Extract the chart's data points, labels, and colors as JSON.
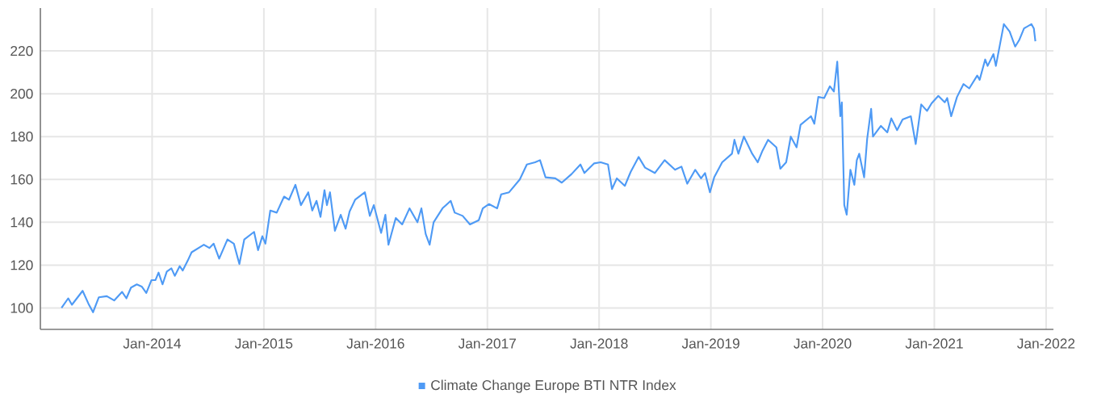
{
  "chart_data": {
    "type": "line",
    "x": [
      "2013-03-11",
      "2013-04-02",
      "2013-04-14",
      "2013-05-19",
      "2013-06-07",
      "2013-06-22",
      "2013-07-11",
      "2013-08-06",
      "2013-08-30",
      "2013-09-25",
      "2013-10-09",
      "2013-10-24",
      "2013-11-12",
      "2013-11-28",
      "2013-12-13",
      "2013-12-30",
      "2014-01-12",
      "2014-01-22",
      "2014-02-04",
      "2014-02-18",
      "2014-03-05",
      "2014-03-16",
      "2014-04-01",
      "2014-04-11",
      "2014-04-27",
      "2014-05-10",
      "2014-06-19",
      "2014-07-07",
      "2014-07-21",
      "2014-08-08",
      "2014-09-04",
      "2014-09-25",
      "2014-10-13",
      "2014-10-29",
      "2014-11-30",
      "2014-12-13",
      "2014-12-27",
      "2015-01-06",
      "2015-01-22",
      "2015-02-12",
      "2015-03-08",
      "2015-03-24",
      "2015-04-14",
      "2015-05-02",
      "2015-05-26",
      "2015-06-08",
      "2015-06-22",
      "2015-07-05",
      "2015-07-18",
      "2015-07-26",
      "2015-08-05",
      "2015-08-21",
      "2015-09-09",
      "2015-09-25",
      "2015-10-08",
      "2015-10-26",
      "2015-11-27",
      "2015-12-13",
      "2015-12-26",
      "2016-01-19",
      "2016-02-02",
      "2016-02-12",
      "2016-03-07",
      "2016-03-28",
      "2016-04-21",
      "2016-05-17",
      "2016-05-30",
      "2016-06-13",
      "2016-06-26",
      "2016-07-09",
      "2016-08-07",
      "2016-09-03",
      "2016-09-16",
      "2016-10-12",
      "2016-11-05",
      "2016-12-04",
      "2016-12-17",
      "2017-01-06",
      "2017-02-02",
      "2017-02-15",
      "2017-03-13",
      "2017-04-17",
      "2017-05-10",
      "2017-06-06",
      "2017-06-22",
      "2017-07-10",
      "2017-08-11",
      "2017-09-01",
      "2017-10-03",
      "2017-11-01",
      "2017-11-14",
      "2017-12-16",
      "2018-01-06",
      "2018-01-30",
      "2018-02-12",
      "2018-02-28",
      "2018-03-26",
      "2018-04-14",
      "2018-05-10",
      "2018-05-31",
      "2018-07-02",
      "2018-08-03",
      "2018-09-06",
      "2018-09-27",
      "2018-10-16",
      "2018-11-11",
      "2018-11-30",
      "2018-12-13",
      "2018-12-29",
      "2019-01-12",
      "2019-02-07",
      "2019-03-11",
      "2019-03-19",
      "2019-04-01",
      "2019-04-19",
      "2019-05-16",
      "2019-06-03",
      "2019-06-19",
      "2019-07-07",
      "2019-08-03",
      "2019-08-16",
      "2019-09-04",
      "2019-09-19",
      "2019-10-08",
      "2019-10-21",
      "2019-11-24",
      "2019-12-05",
      "2019-12-18",
      "2020-01-06",
      "2020-01-25",
      "2020-02-07",
      "2020-02-18",
      "2020-02-28",
      "2020-03-04",
      "2020-03-12",
      "2020-03-20",
      "2020-04-01",
      "2020-04-14",
      "2020-04-22",
      "2020-04-30",
      "2020-05-16",
      "2020-05-26",
      "2020-06-08",
      "2020-06-14",
      "2020-07-10",
      "2020-07-31",
      "2020-08-13",
      "2020-09-01",
      "2020-09-19",
      "2020-10-16",
      "2020-11-01",
      "2020-11-19",
      "2020-12-08",
      "2020-12-23",
      "2021-01-14",
      "2021-02-04",
      "2021-02-12",
      "2021-02-25",
      "2021-03-16",
      "2021-04-06",
      "2021-04-25",
      "2021-05-21",
      "2021-05-29",
      "2021-06-16",
      "2021-06-24",
      "2021-07-13",
      "2021-07-21",
      "2021-08-16",
      "2021-09-04",
      "2021-09-22",
      "2021-10-05",
      "2021-10-21",
      "2021-11-14",
      "2021-11-22",
      "2021-11-27"
    ],
    "series": [
      {
        "name": "Climate Change Europe BTI NTR Index",
        "color": "#4e9af5",
        "values": [
          100,
          104.5,
          101.5,
          108,
          102,
          98,
          105,
          105.5,
          103.5,
          107.5,
          104.5,
          109.5,
          111,
          110,
          107,
          113,
          113,
          116.5,
          111,
          117,
          118.5,
          115,
          119.5,
          117.5,
          122,
          126,
          129.5,
          128,
          130,
          123,
          132,
          130,
          120.5,
          132,
          135.5,
          127,
          133.5,
          130,
          145.5,
          144.5,
          152,
          150.5,
          157.5,
          148,
          154,
          145.5,
          150,
          142.5,
          155,
          148,
          154,
          136,
          143.5,
          137,
          145,
          150.5,
          154,
          143,
          148,
          135,
          143.5,
          129.5,
          142,
          139,
          146.5,
          140,
          146.5,
          134.5,
          129.5,
          140,
          146.5,
          150,
          144.5,
          143,
          139,
          141,
          146.5,
          148.5,
          146.5,
          153,
          154,
          160,
          167,
          168,
          169,
          161,
          160.5,
          158.5,
          162.5,
          167,
          163,
          167.5,
          168,
          167,
          155.5,
          160.5,
          157,
          163.5,
          170.5,
          165.5,
          163,
          169,
          164.5,
          166,
          158,
          164.5,
          160.5,
          163,
          154,
          161,
          168,
          172,
          178.5,
          172,
          180,
          172,
          168,
          173.5,
          178.5,
          175,
          165,
          168,
          180,
          175,
          185.5,
          189.5,
          186,
          198.5,
          198,
          203.5,
          201,
          215,
          189.5,
          196,
          148,
          143.5,
          164.5,
          157.5,
          169,
          172,
          161,
          179,
          193,
          180,
          185,
          182,
          188.5,
          183,
          188,
          189.5,
          176.5,
          195,
          192,
          195.5,
          199,
          196,
          198,
          189.5,
          198.5,
          204.5,
          202.5,
          208.5,
          206.5,
          216,
          213,
          218.5,
          213,
          232.5,
          229,
          222,
          225,
          230.5,
          232.5,
          230.5,
          224.5
        ]
      }
    ],
    "xlim": [
      "2013-01-01",
      "2022-01-25"
    ],
    "xticks": [
      {
        "value": "2014-01-01",
        "label": "Jan-2014"
      },
      {
        "value": "2015-01-01",
        "label": "Jan-2015"
      },
      {
        "value": "2016-01-01",
        "label": "Jan-2016"
      },
      {
        "value": "2017-01-01",
        "label": "Jan-2017"
      },
      {
        "value": "2018-01-01",
        "label": "Jan-2018"
      },
      {
        "value": "2019-01-01",
        "label": "Jan-2019"
      },
      {
        "value": "2020-01-01",
        "label": "Jan-2020"
      },
      {
        "value": "2021-01-01",
        "label": "Jan-2021"
      },
      {
        "value": "2022-01-01",
        "label": "Jan-2022"
      }
    ],
    "ylim": [
      90,
      240
    ],
    "yticks": [
      100,
      120,
      140,
      160,
      180,
      200,
      220
    ],
    "grid": true,
    "legend": "bottom",
    "marker": "none",
    "line_style": "solid"
  }
}
